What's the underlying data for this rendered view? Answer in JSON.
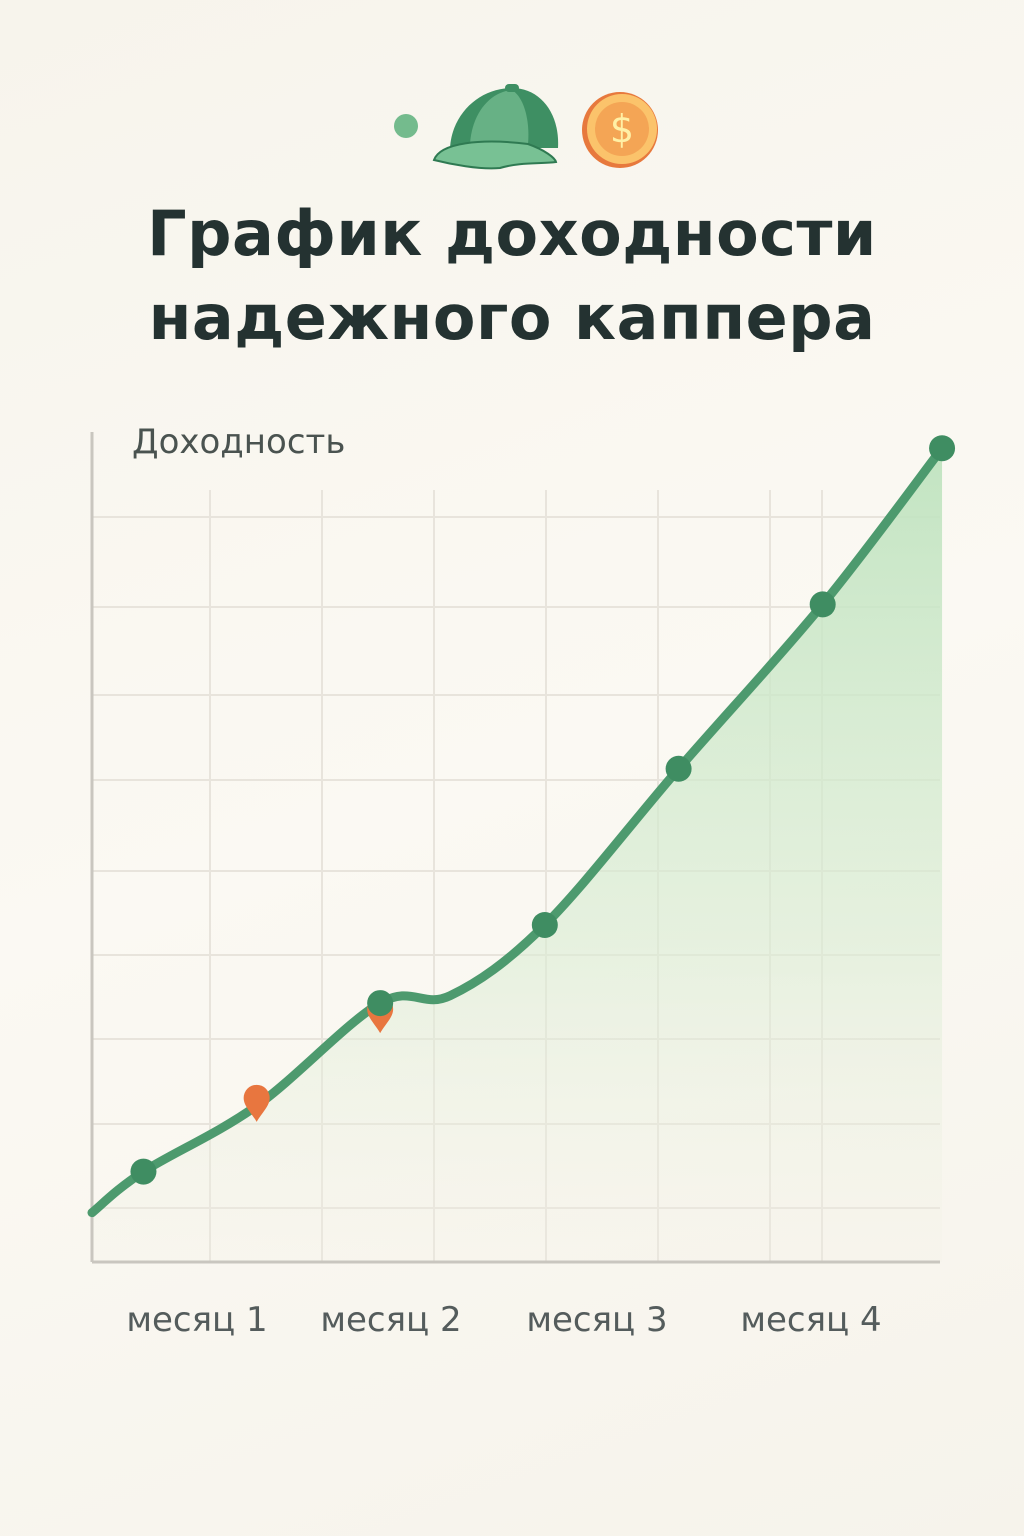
{
  "header": {
    "icons": [
      "dot-icon",
      "cap-icon",
      "dollar-coin-icon"
    ],
    "title_line1": "График доходности",
    "title_line2": "надежного каппера"
  },
  "colors": {
    "line": "#4d9a6e",
    "marker": "#3f8d62",
    "pin": "#e8763f",
    "fill_top": "#bfe3bf",
    "grid": "#e8e4dc",
    "axis": "#c9c6bf"
  },
  "chart_data": {
    "type": "area",
    "title": "",
    "ylabel": "Доходность",
    "xlabel": "",
    "x_tick_labels": [
      {
        "label": "месяц 1",
        "x": 1
      },
      {
        "label": "месяц 2",
        "x": 2
      },
      {
        "label": "месяц 3",
        "x": 3
      },
      {
        "label": "месяц 4",
        "x": 4
      }
    ],
    "xlim": [
      0.5,
      4.62
    ],
    "ylim": [
      0,
      100
    ],
    "grid": true,
    "legend": "none",
    "points": [
      {
        "x": 0.5,
        "y": 6,
        "marker": "none"
      },
      {
        "x": 0.75,
        "y": 11,
        "marker": "dot"
      },
      {
        "x": 1.3,
        "y": 19,
        "marker": "pin"
      },
      {
        "x": 1.9,
        "y": 31.5,
        "marker": "dot-pin"
      },
      {
        "x": 2.24,
        "y": 32.4,
        "marker": "none"
      },
      {
        "x": 2.7,
        "y": 41,
        "marker": "dot"
      },
      {
        "x": 3.35,
        "y": 60,
        "marker": "dot"
      },
      {
        "x": 4.05,
        "y": 80,
        "marker": "dot"
      },
      {
        "x": 4.63,
        "y": 99,
        "marker": "dot"
      }
    ]
  }
}
